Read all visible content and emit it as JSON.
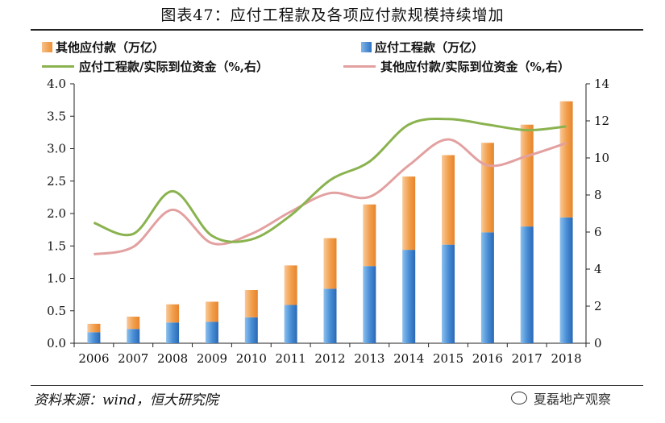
{
  "title": "图表47：应付工程款及各项应付款规模持续增加",
  "legend": {
    "other_payables": "其他应付款（万亿）",
    "engineering_payables": "应付工程款（万亿）",
    "engineering_ratio": "应付工程款/实际到位资金（%,右）",
    "other_ratio": "其他应付款/实际到位资金（%,右）"
  },
  "colors": {
    "engineering_bar": "#4a8fd6",
    "other_bar": "#f0a04b",
    "engineering_line": "#8ab34f",
    "other_line": "#e3a0a0"
  },
  "source": "资料来源：wind，恒大研究院",
  "watermark": "夏磊地产观察",
  "chart_data": {
    "type": "bar",
    "categories": [
      "2006",
      "2007",
      "2008",
      "2009",
      "2010",
      "2011",
      "2012",
      "2013",
      "2014",
      "2015",
      "2016",
      "2017",
      "2018"
    ],
    "series": [
      {
        "name": "应付工程款（万亿）",
        "kind": "stacked-bar",
        "axis": "left",
        "values": [
          0.17,
          0.22,
          0.32,
          0.33,
          0.4,
          0.59,
          0.84,
          1.19,
          1.44,
          1.52,
          1.71,
          1.8,
          1.94
        ]
      },
      {
        "name": "其他应付款（万亿）",
        "kind": "stacked-bar",
        "axis": "left",
        "values": [
          0.13,
          0.19,
          0.28,
          0.31,
          0.42,
          0.61,
          0.78,
          0.95,
          1.13,
          1.38,
          1.38,
          1.57,
          1.79
        ]
      },
      {
        "name": "应付工程款/实际到位资金（%,右）",
        "kind": "line",
        "axis": "right",
        "values": [
          6.5,
          5.9,
          8.2,
          5.8,
          5.6,
          6.9,
          8.8,
          9.8,
          11.8,
          12.1,
          11.8,
          11.5,
          11.7
        ]
      },
      {
        "name": "其他应付款/实际到位资金（%,右）",
        "kind": "line",
        "axis": "right",
        "values": [
          4.8,
          5.2,
          7.2,
          5.4,
          5.9,
          7.1,
          8.1,
          7.9,
          9.6,
          11.0,
          9.6,
          10.1,
          10.8
        ]
      }
    ],
    "ylim": [
      0,
      4.0
    ],
    "yticks": [
      "0.0",
      "0.5",
      "1.0",
      "1.5",
      "2.0",
      "2.5",
      "3.0",
      "3.5",
      "4.0"
    ],
    "y2lim": [
      0,
      14
    ],
    "y2ticks": [
      "0",
      "2",
      "4",
      "6",
      "8",
      "10",
      "12",
      "14"
    ],
    "grid": false,
    "legend_position": "top"
  }
}
